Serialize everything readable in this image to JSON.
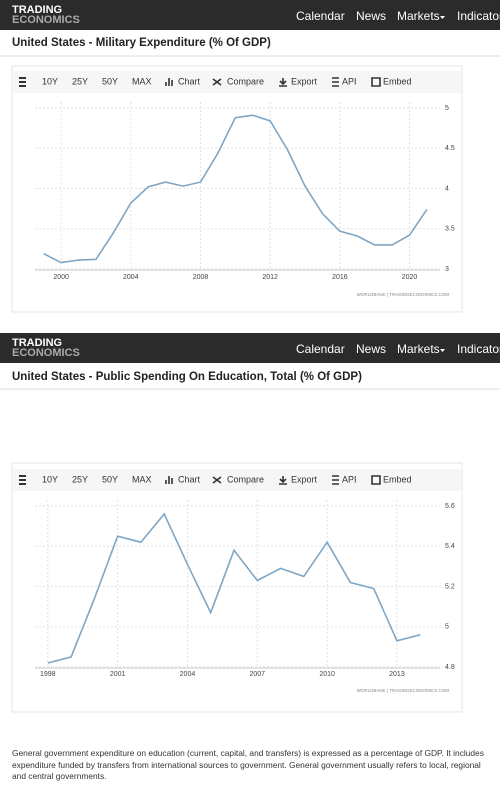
{
  "headers": [
    {
      "logo_top": "TRADING",
      "logo_bottom": "ECONOMICS",
      "nav": [
        "Calendar",
        "News",
        "Markets",
        "Indicators"
      ]
    },
    {
      "logo_top": "TRADING",
      "logo_bottom": "ECONOMICS",
      "nav": [
        "Calendar",
        "News",
        "Markets",
        "Indicators"
      ]
    }
  ],
  "toolbars": [
    [
      "10Y",
      "25Y",
      "50Y",
      "MAX",
      "Chart",
      "Compare",
      "Export",
      "API",
      "Embed"
    ],
    [
      "10Y",
      "25Y",
      "50Y",
      "MAX",
      "Chart",
      "Compare",
      "Export",
      "API",
      "Embed"
    ]
  ],
  "description": "General government expenditure on education (current, capital, and transfers) is expressed as a percentage of GDP. It includes expenditure funded by transfers from international sources to government. General government usually refers to local, regional and central governments.",
  "chart_data": [
    {
      "type": "line",
      "title": "United States - Military Expenditure (% Of GDP)",
      "source": "WORLDBANK | TRADINGECONOMICS.COM",
      "x": [
        1999,
        2000,
        2001,
        2002,
        2003,
        2004,
        2005,
        2006,
        2007,
        2008,
        2009,
        2010,
        2011,
        2012,
        2013,
        2014,
        2015,
        2016,
        2017,
        2018,
        2019,
        2020,
        2021
      ],
      "values": [
        3.19,
        3.08,
        3.11,
        3.12,
        3.45,
        3.82,
        4.02,
        4.08,
        4.03,
        4.08,
        4.44,
        4.88,
        4.91,
        4.84,
        4.48,
        4.03,
        3.69,
        3.47,
        3.41,
        3.3,
        3.3,
        3.42,
        3.74
      ],
      "color": "#7ea6c6",
      "xlim": [
        1998.5,
        2021.75
      ],
      "xticks": [
        2000,
        2004,
        2008,
        2012,
        2016,
        2020
      ],
      "ylim": [
        3,
        5
      ],
      "yticks": [
        3,
        3.5,
        4,
        4.5,
        5
      ],
      "grid": true
    },
    {
      "type": "line",
      "title": "United States - Public Spending On Education, Total (% Of GDP)",
      "source": "WORLDBANK | TRADINGECONOMICS.COM",
      "x": [
        1998,
        1999,
        2000,
        2001,
        2002,
        2003,
        2004,
        2005,
        2006,
        2007,
        2008,
        2009,
        2010,
        2011,
        2012,
        2013,
        2014
      ],
      "values": [
        4.82,
        4.85,
        5.14,
        5.45,
        5.42,
        5.56,
        5.31,
        5.07,
        5.38,
        5.23,
        5.29,
        5.25,
        5.42,
        5.22,
        5.19,
        4.93,
        4.96
      ],
      "color": "#7ea6c6",
      "xlim": [
        1997.45,
        2014.85
      ],
      "xticks": [
        1998,
        2001,
        2004,
        2007,
        2010,
        2013
      ],
      "ylim": [
        4.8,
        5.6
      ],
      "yticks": [
        4.8,
        5,
        5.2,
        5.4,
        5.6
      ],
      "grid": true
    }
  ]
}
